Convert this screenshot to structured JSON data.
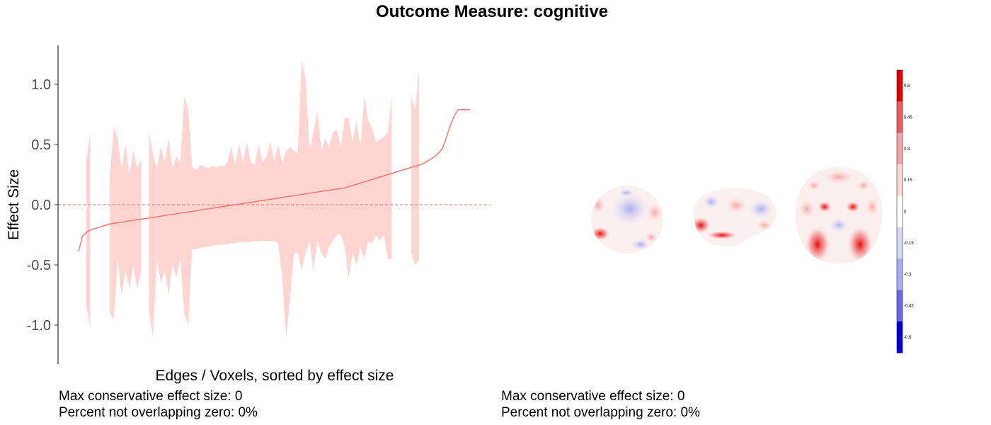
{
  "title": "Outcome Measure: cognitive",
  "chart_data": {
    "type": "area",
    "title": "Outcome Measure: cognitive",
    "xlabel": "Edges / Voxels, sorted by effect size",
    "ylabel": "Effect Size",
    "ylim": [
      -1.3,
      1.2
    ],
    "y_ticks": [
      1.0,
      0.5,
      0.0,
      -0.5,
      -1.0
    ],
    "y_tick_labels": [
      "1.0",
      "0.5",
      "0.0",
      "-0.5",
      "-1.0"
    ],
    "reference_line": 0,
    "x": [
      0,
      1,
      2,
      3,
      4,
      5,
      6,
      7,
      8,
      9,
      10,
      11,
      12,
      13,
      14,
      15,
      16,
      17,
      18,
      19,
      20,
      21,
      22,
      23,
      24,
      25,
      26,
      27,
      28,
      29,
      30,
      31,
      32,
      33,
      34,
      35,
      36,
      37,
      38,
      39,
      40,
      41,
      42,
      43,
      44,
      45,
      46,
      47,
      48,
      49,
      50,
      51,
      52,
      53,
      54,
      55,
      56,
      57,
      58,
      59,
      60,
      61,
      62,
      63,
      64,
      65,
      66,
      67,
      68,
      69,
      70,
      71,
      72,
      73,
      74,
      75,
      76,
      77,
      78,
      79,
      80,
      81,
      82,
      83,
      84,
      85,
      86,
      87,
      88,
      89,
      90,
      91,
      92,
      93,
      94,
      95,
      96,
      97,
      98,
      99,
      100
    ],
    "series": [
      {
        "role": "estimate",
        "values": [
          -0.39,
          -0.26,
          -0.23,
          -0.21,
          -0.2,
          -0.19,
          -0.18,
          -0.17,
          -0.16,
          -0.155,
          -0.15,
          -0.145,
          -0.14,
          -0.135,
          -0.13,
          -0.125,
          -0.12,
          -0.115,
          -0.11,
          -0.105,
          -0.1,
          -0.095,
          -0.09,
          -0.085,
          -0.08,
          -0.075,
          -0.07,
          -0.065,
          -0.06,
          -0.055,
          -0.05,
          -0.045,
          -0.04,
          -0.035,
          -0.03,
          -0.025,
          -0.02,
          -0.015,
          -0.01,
          -0.005,
          0.0,
          0.005,
          0.01,
          0.015,
          0.02,
          0.025,
          0.03,
          0.035,
          0.04,
          0.045,
          0.05,
          0.055,
          0.06,
          0.065,
          0.07,
          0.075,
          0.08,
          0.085,
          0.09,
          0.095,
          0.1,
          0.105,
          0.11,
          0.115,
          0.12,
          0.125,
          0.13,
          0.135,
          0.14,
          0.15,
          0.16,
          0.17,
          0.18,
          0.19,
          0.2,
          0.21,
          0.22,
          0.23,
          0.24,
          0.25,
          0.26,
          0.27,
          0.28,
          0.29,
          0.3,
          0.31,
          0.32,
          0.33,
          0.34,
          0.36,
          0.38,
          0.4,
          0.43,
          0.47,
          0.56,
          0.66,
          0.74,
          0.79,
          0.79,
          0.79,
          0.79
        ]
      },
      {
        "role": "interval_upper",
        "values": [
          null,
          null,
          0.38,
          0.6,
          null,
          null,
          null,
          null,
          0.23,
          0.65,
          0.55,
          0.3,
          0.5,
          0.25,
          0.45,
          0.3,
          0.38,
          null,
          0.6,
          0.42,
          0.3,
          0.48,
          0.35,
          0.55,
          0.3,
          0.4,
          0.35,
          0.9,
          0.8,
          0.32,
          0.28,
          0.33,
          0.32,
          0.3,
          0.32,
          0.31,
          0.32,
          0.32,
          0.35,
          0.48,
          0.33,
          0.5,
          0.35,
          0.52,
          0.35,
          0.33,
          0.5,
          0.35,
          0.4,
          0.52,
          0.36,
          0.5,
          0.35,
          0.44,
          0.48,
          0.45,
          0.42,
          1.2,
          1.05,
          0.45,
          0.6,
          0.78,
          0.45,
          0.55,
          0.48,
          0.6,
          0.62,
          0.48,
          0.72,
          0.72,
          0.52,
          0.7,
          0.48,
          0.9,
          0.7,
          0.63,
          0.52,
          0.54,
          0.56,
          0.6,
          0.9,
          null,
          null,
          null,
          null,
          0.9,
          0.79,
          1.12,
          null,
          null,
          null,
          null,
          null,
          null,
          null,
          null,
          null,
          null,
          null,
          null,
          null
        ]
      },
      {
        "role": "interval_lower",
        "values": [
          null,
          null,
          -0.85,
          -1.02,
          null,
          null,
          null,
          null,
          -0.9,
          -0.95,
          -0.45,
          -0.75,
          -0.55,
          -0.7,
          -0.5,
          -0.7,
          -0.55,
          null,
          -0.9,
          -1.1,
          -0.45,
          -0.65,
          -0.55,
          -0.75,
          -0.5,
          -0.6,
          -0.45,
          -0.9,
          -1.0,
          -0.37,
          -0.37,
          -0.36,
          -0.35,
          -0.35,
          -0.34,
          -0.34,
          -0.33,
          -0.33,
          -0.33,
          -0.32,
          -0.32,
          -0.31,
          -0.31,
          -0.31,
          -0.31,
          -0.3,
          -0.3,
          -0.3,
          -0.3,
          -0.3,
          -0.3,
          -0.32,
          -0.6,
          -1.1,
          -0.8,
          -0.4,
          -0.4,
          -0.55,
          -0.4,
          -0.3,
          -0.55,
          -0.3,
          -0.4,
          -0.45,
          -0.35,
          -0.3,
          -0.25,
          -0.25,
          -0.35,
          -0.6,
          -0.4,
          -0.5,
          -0.35,
          -0.45,
          -0.3,
          -0.32,
          -0.25,
          -0.3,
          -0.25,
          -0.45,
          -0.45,
          null,
          null,
          null,
          null,
          -0.4,
          -0.5,
          -0.46,
          null,
          null,
          null,
          null,
          null,
          null,
          null,
          null,
          null,
          null,
          null,
          null,
          null
        ]
      }
    ],
    "colors": {
      "line": "#F8766D",
      "ribbon": "#FFD4D1",
      "zero_line": "#E8735E",
      "axis": "#000000"
    }
  },
  "colorbar": {
    "labels": [
      "0.6",
      "0.45",
      "0.3",
      "0.15",
      "0",
      "-0.15",
      "-0.3",
      "-0.45",
      "-0.6"
    ],
    "colors": [
      "#E60000",
      "#EE5C5C",
      "#F5A5A5",
      "#FBDADA",
      "#FFFFFF",
      "#DADAF8",
      "#ABABF0",
      "#6A6AE6",
      "#0000DD"
    ]
  },
  "captions": {
    "left_line1": "Max conservative effect size: 0",
    "left_line2": "Percent not overlapping zero: 0%",
    "right_line1": "Max conservative effect size: 0",
    "right_line2": "Percent not overlapping zero: 0%"
  }
}
